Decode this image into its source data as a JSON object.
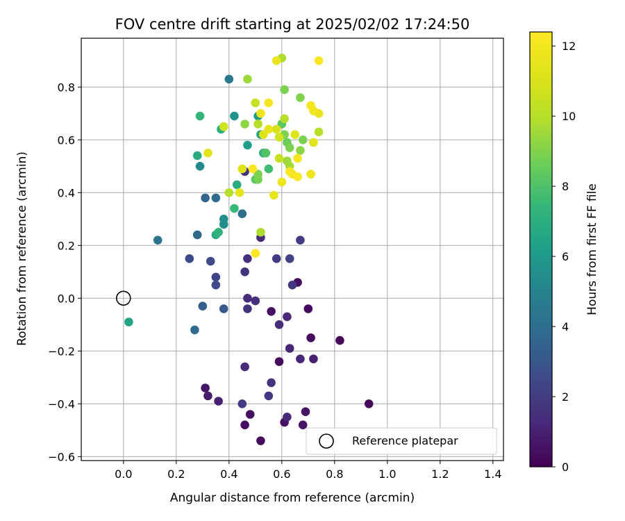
{
  "chart_data": {
    "type": "scatter",
    "title": "FOV centre drift starting at 2025/02/02 17:24:50",
    "xlabel": "Angular distance from reference (arcmin)",
    "ylabel": "Rotation from reference (arcmin)",
    "xlim": [
      -0.16,
      1.44
    ],
    "ylim": [
      -0.615,
      0.985
    ],
    "xticks": [
      "0.0",
      "0.2",
      "0.4",
      "0.6",
      "0.8",
      "1.0",
      "1.2",
      "1.4"
    ],
    "xtick_values": [
      0.0,
      0.2,
      0.4,
      0.6,
      0.8,
      1.0,
      1.2,
      1.4
    ],
    "yticks": [
      "−0.6",
      "−0.4",
      "−0.2",
      "0.0",
      "0.2",
      "0.4",
      "0.6",
      "0.8"
    ],
    "ytick_values": [
      -0.6,
      -0.4,
      -0.2,
      0.0,
      0.2,
      0.4,
      0.6,
      0.8
    ],
    "grid": true,
    "legend": {
      "position": "lower-right",
      "label": "Reference platepar"
    },
    "colorbar": {
      "label": "Hours from first FF file",
      "min": 0,
      "max": 12.4,
      "ticks": [
        "0",
        "2",
        "4",
        "6",
        "8",
        "10",
        "12"
      ],
      "tick_values": [
        0,
        2,
        4,
        6,
        8,
        10,
        12
      ],
      "colormap": "viridis"
    },
    "reference_point": {
      "x": 0.0,
      "y": 0.0
    },
    "points": [
      [
        0.93,
        -0.4,
        0.2
      ],
      [
        0.82,
        -0.16,
        0.2
      ],
      [
        0.71,
        -0.15,
        0.3
      ],
      [
        0.7,
        -0.04,
        0.3
      ],
      [
        0.66,
        0.06,
        0.4
      ],
      [
        0.59,
        -0.24,
        0.3
      ],
      [
        0.56,
        -0.05,
        0.4
      ],
      [
        0.52,
        -0.54,
        0.3
      ],
      [
        0.46,
        -0.48,
        0.4
      ],
      [
        0.48,
        -0.44,
        0.5
      ],
      [
        0.61,
        -0.47,
        0.5
      ],
      [
        0.68,
        -0.48,
        0.6
      ],
      [
        0.69,
        -0.43,
        0.6
      ],
      [
        0.31,
        -0.34,
        0.7
      ],
      [
        0.32,
        -0.37,
        0.8
      ],
      [
        0.36,
        -0.39,
        1.0
      ],
      [
        0.72,
        -0.23,
        1.0
      ],
      [
        0.62,
        -0.45,
        1.3
      ],
      [
        0.67,
        -0.23,
        1.2
      ],
      [
        0.63,
        -0.19,
        1.2
      ],
      [
        0.62,
        -0.07,
        1.3
      ],
      [
        0.59,
        -0.1,
        1.4
      ],
      [
        0.56,
        -0.32,
        1.6
      ],
      [
        0.55,
        -0.37,
        1.8
      ],
      [
        0.45,
        -0.4,
        2.0
      ],
      [
        0.46,
        -0.26,
        1.4
      ],
      [
        0.5,
        -0.01,
        1.5
      ],
      [
        0.47,
        0.0,
        1.4
      ],
      [
        0.47,
        -0.04,
        1.7
      ],
      [
        0.46,
        0.1,
        1.7
      ],
      [
        0.47,
        0.15,
        1.5
      ],
      [
        0.46,
        0.48,
        1.6
      ],
      [
        0.52,
        0.23,
        1.3
      ],
      [
        0.64,
        0.05,
        1.8
      ],
      [
        0.63,
        0.15,
        2.2
      ],
      [
        0.67,
        0.22,
        2.0
      ],
      [
        0.58,
        0.15,
        2.0
      ],
      [
        0.25,
        0.15,
        2.5
      ],
      [
        0.33,
        0.14,
        2.6
      ],
      [
        0.35,
        0.08,
        2.3
      ],
      [
        0.35,
        0.05,
        2.5
      ],
      [
        0.38,
        -0.04,
        3.2
      ],
      [
        0.3,
        -0.03,
        3.3
      ],
      [
        0.27,
        -0.12,
        3.8
      ],
      [
        0.13,
        0.22,
        4.3
      ],
      [
        0.28,
        0.24,
        3.7
      ],
      [
        0.31,
        0.38,
        3.6
      ],
      [
        0.35,
        0.38,
        3.9
      ],
      [
        0.45,
        0.32,
        3.9
      ],
      [
        0.38,
        0.28,
        5.5
      ],
      [
        0.38,
        0.3,
        5.5
      ],
      [
        0.29,
        0.5,
        5.3
      ],
      [
        0.4,
        0.83,
        4.5
      ],
      [
        0.02,
        -0.09,
        6.5
      ],
      [
        0.35,
        0.24,
        6.8
      ],
      [
        0.36,
        0.25,
        7.2
      ],
      [
        0.43,
        0.43,
        6.9
      ],
      [
        0.42,
        0.34,
        7.5
      ],
      [
        0.28,
        0.54,
        6.8
      ],
      [
        0.29,
        0.69,
        7.3
      ],
      [
        0.37,
        0.64,
        7.0
      ],
      [
        0.38,
        0.65,
        7.5
      ],
      [
        0.42,
        0.69,
        5.8
      ],
      [
        0.47,
        0.58,
        6.2
      ],
      [
        0.51,
        0.69,
        6.1
      ],
      [
        0.52,
        0.62,
        6.4
      ],
      [
        0.53,
        0.55,
        7.2
      ],
      [
        0.54,
        0.55,
        8.1
      ],
      [
        0.55,
        0.49,
        7.7
      ],
      [
        0.5,
        0.45,
        8.2
      ],
      [
        0.51,
        0.45,
        8.8
      ],
      [
        0.51,
        0.47,
        8.9
      ],
      [
        0.52,
        0.25,
        9.8
      ],
      [
        0.4,
        0.4,
        10.0
      ],
      [
        0.44,
        0.4,
        11.5
      ],
      [
        0.45,
        0.49,
        11.2
      ],
      [
        0.46,
        0.66,
        9.2
      ],
      [
        0.47,
        0.83,
        9.5
      ],
      [
        0.5,
        0.74,
        10.5
      ],
      [
        0.51,
        0.66,
        10.0
      ],
      [
        0.52,
        0.7,
        11.8
      ],
      [
        0.53,
        0.62,
        11.2
      ],
      [
        0.55,
        0.74,
        12.0
      ],
      [
        0.55,
        0.64,
        11.5
      ],
      [
        0.57,
        0.39,
        11.6
      ],
      [
        0.58,
        0.64,
        11.0
      ],
      [
        0.59,
        0.61,
        10.8
      ],
      [
        0.59,
        0.53,
        10.5
      ],
      [
        0.6,
        0.44,
        11.8
      ],
      [
        0.6,
        0.66,
        8.3
      ],
      [
        0.61,
        0.62,
        9.0
      ],
      [
        0.61,
        0.68,
        10.0
      ],
      [
        0.61,
        0.79,
        8.9
      ],
      [
        0.6,
        0.91,
        9.8
      ],
      [
        0.58,
        0.9,
        11.6
      ],
      [
        0.62,
        0.59,
        8.6
      ],
      [
        0.62,
        0.52,
        9.5
      ],
      [
        0.63,
        0.5,
        9.6
      ],
      [
        0.63,
        0.57,
        8.9
      ],
      [
        0.63,
        0.48,
        12.2
      ],
      [
        0.64,
        0.47,
        12.0
      ],
      [
        0.65,
        0.62,
        11.3
      ],
      [
        0.66,
        0.46,
        12.3
      ],
      [
        0.66,
        0.53,
        12.0
      ],
      [
        0.67,
        0.56,
        9.2
      ],
      [
        0.67,
        0.76,
        9.0
      ],
      [
        0.68,
        0.6,
        8.9
      ],
      [
        0.71,
        0.47,
        11.8
      ],
      [
        0.71,
        0.73,
        12.1
      ],
      [
        0.72,
        0.71,
        11.8
      ],
      [
        0.72,
        0.59,
        11.3
      ],
      [
        0.74,
        0.63,
        10.0
      ],
      [
        0.74,
        0.7,
        11.6
      ],
      [
        0.74,
        0.9,
        12.3
      ],
      [
        0.32,
        0.55,
        11.4
      ],
      [
        0.38,
        0.65,
        10.8
      ],
      [
        0.49,
        0.49,
        12.3
      ],
      [
        0.5,
        0.17,
        12.4
      ]
    ]
  }
}
